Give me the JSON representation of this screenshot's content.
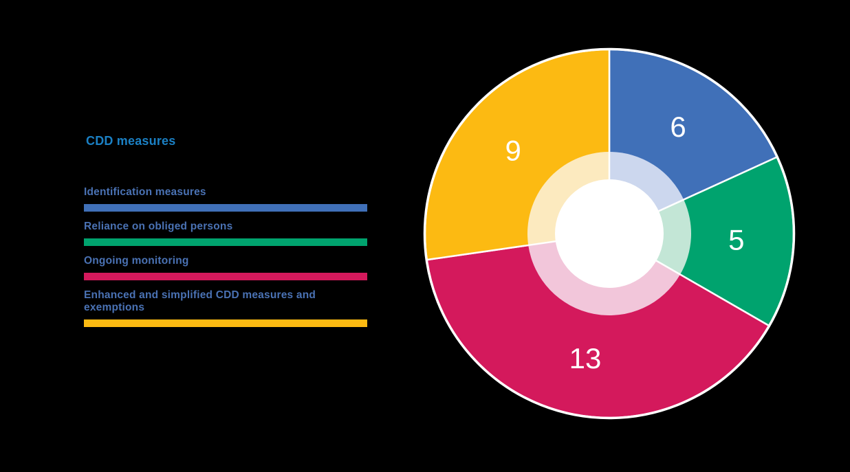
{
  "background_color": "#000000",
  "legend": {
    "title": "CDD measures",
    "title_color": "#1b80c4",
    "text_color": "#4a72b4",
    "items": [
      {
        "label": "Identification measures",
        "color": "#4070b8"
      },
      {
        "label": "Reliance on obliged persons",
        "color": "#00a36e"
      },
      {
        "label": "Ongoing monitoring",
        "color": "#d4195c"
      },
      {
        "label": "Enhanced and simplified CDD measures and exemptions",
        "color": "#fcba12"
      }
    ]
  },
  "chart_data": {
    "type": "pie",
    "title": "CDD measures",
    "donut": true,
    "start_angle_deg": 0,
    "direction": "clockwise",
    "categories": [
      "Identification measures",
      "Reliance on obliged persons",
      "Ongoing monitoring",
      "Enhanced and simplified CDD measures and exemptions"
    ],
    "values": [
      6,
      5,
      13,
      9
    ],
    "total": 33,
    "labels": [
      "6",
      "5",
      "13",
      "9"
    ],
    "label_color": "#ffffff",
    "colors": [
      "#4070b8",
      "#00a36e",
      "#d4195c",
      "#fcba12"
    ],
    "inner_ring_colors": [
      "#ccd7ee",
      "#c3e6d6",
      "#f2c6da",
      "#fceabf"
    ],
    "hole_color": "#ffffff",
    "outline_color": "#ffffff",
    "legend_position": "left"
  }
}
